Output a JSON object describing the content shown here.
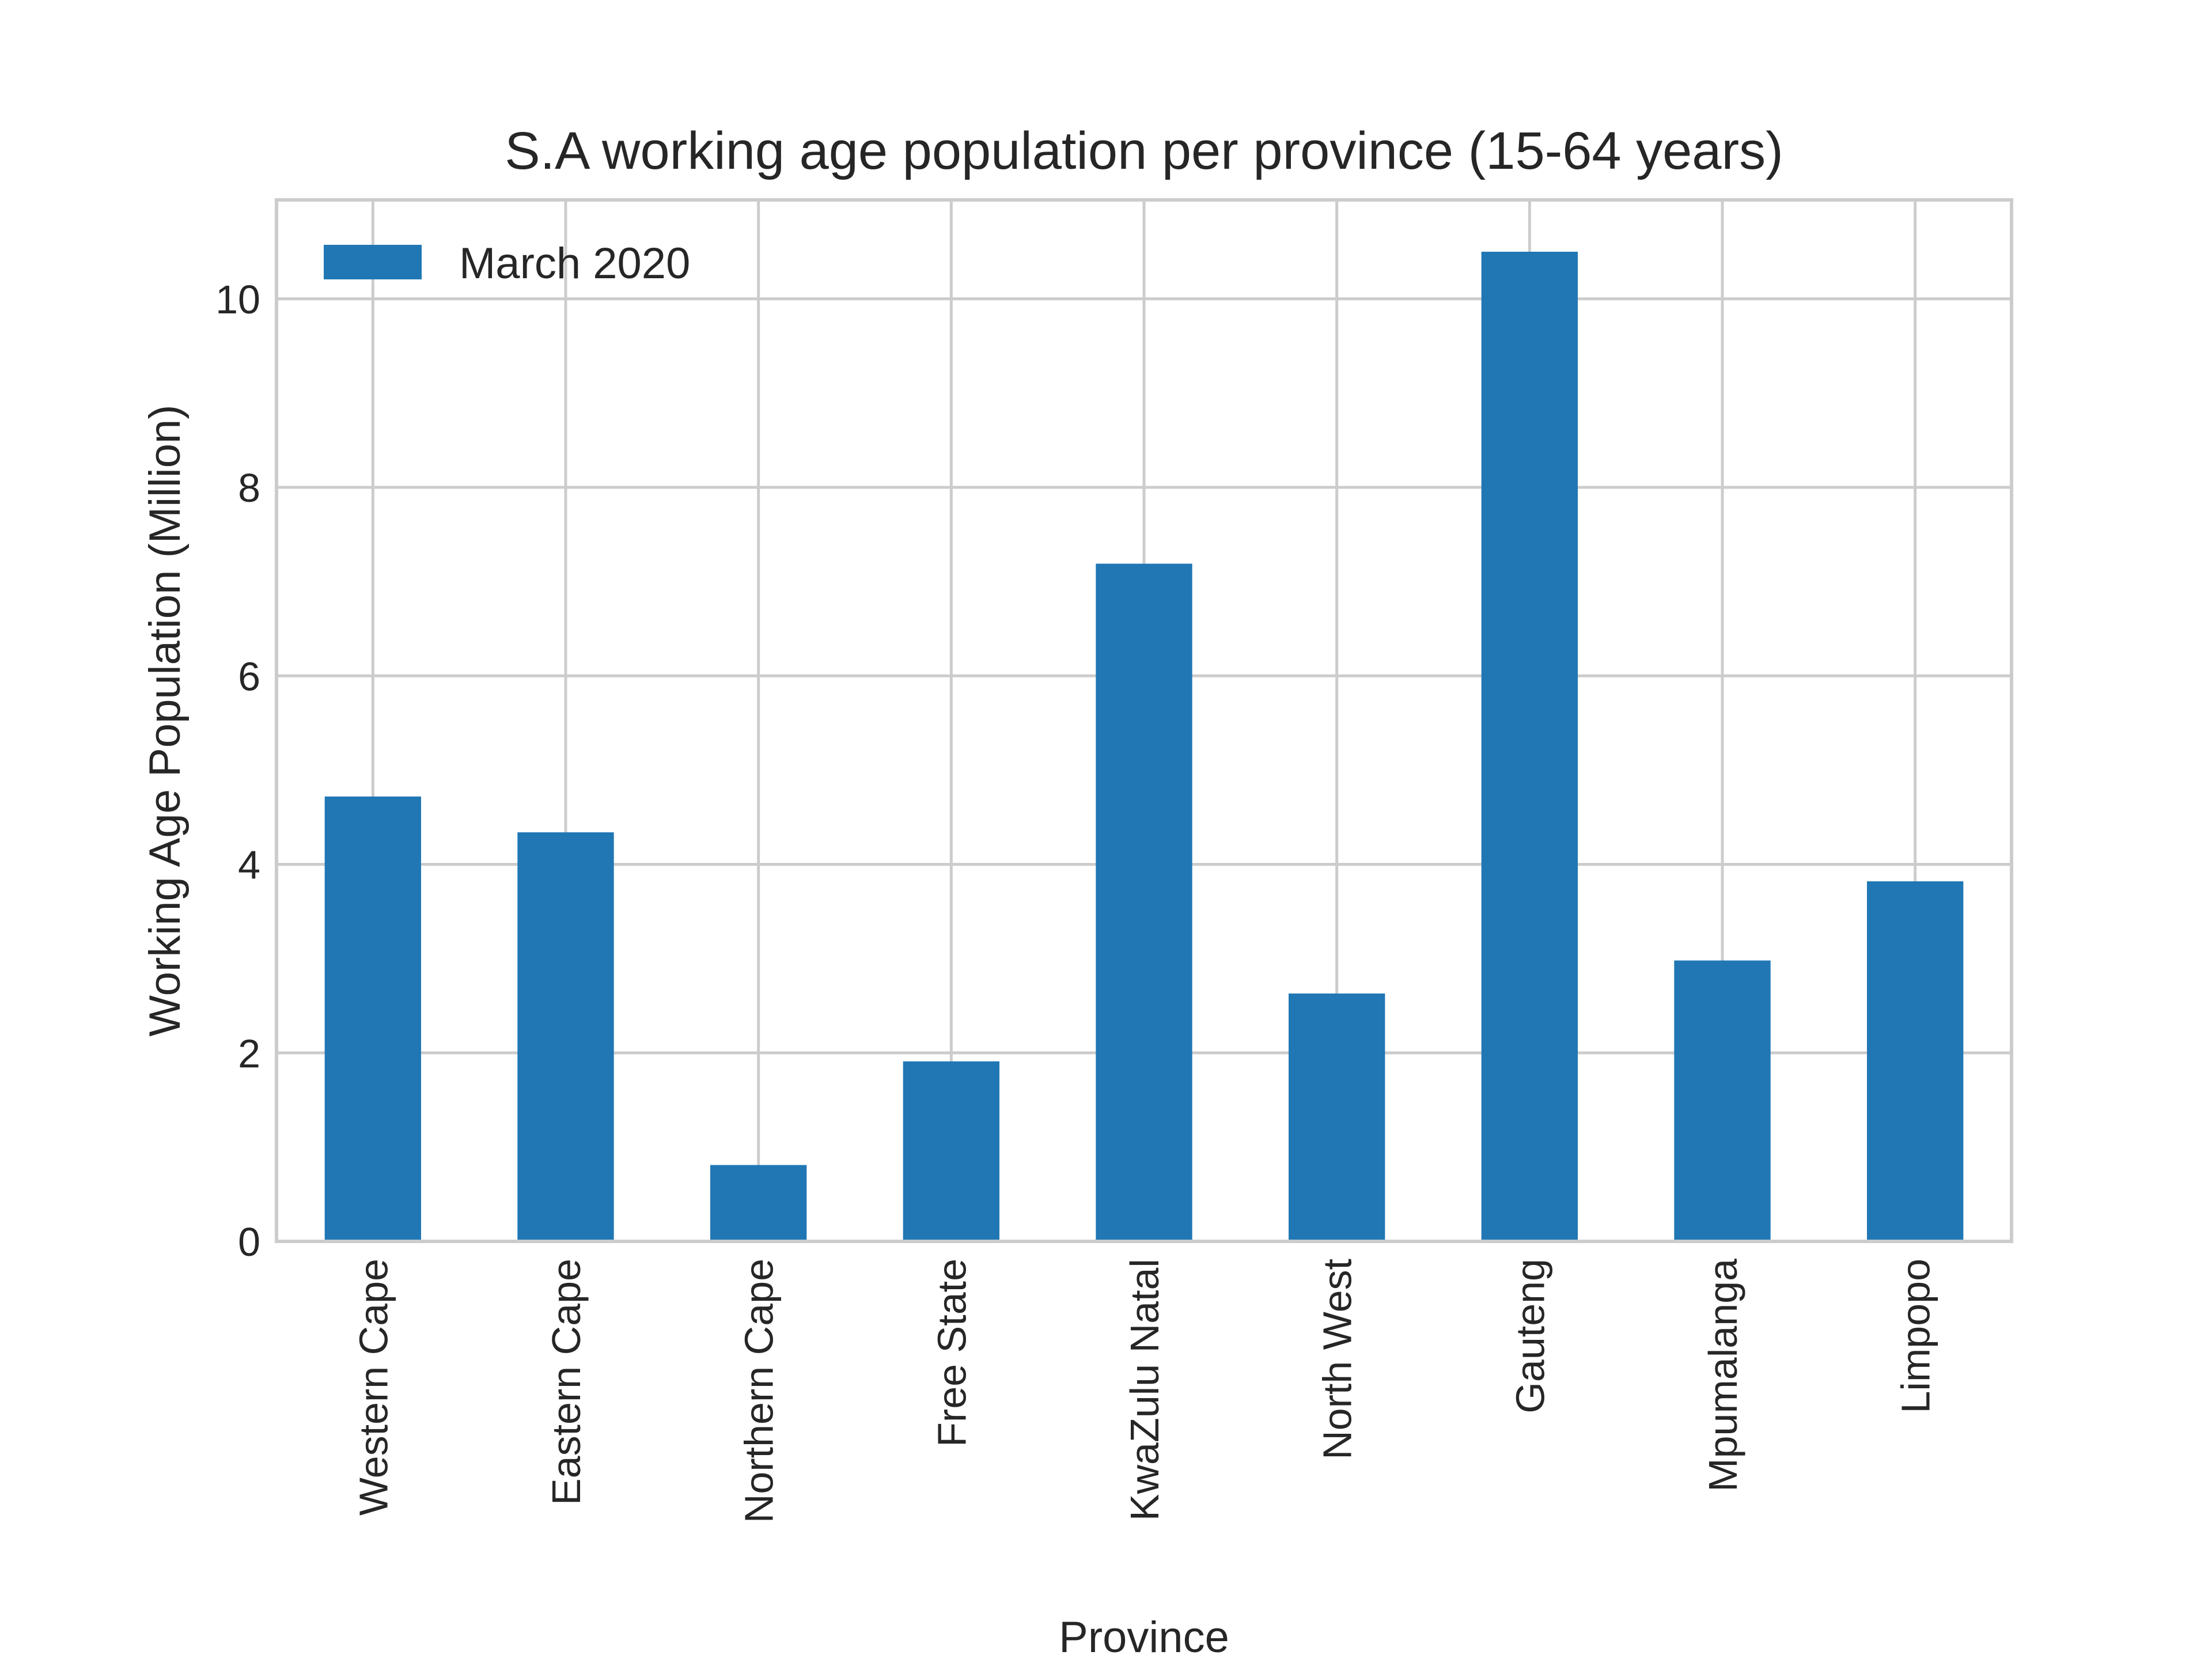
{
  "chart_data": {
    "type": "bar",
    "title": "S.A working age population per province (15-64 years)",
    "xlabel": "Province",
    "ylabel": "Working Age Population (Million)",
    "categories": [
      "Western Cape",
      "Eastern Cape",
      "Northern Cape",
      "Free State",
      "KwaZulu Natal",
      "North West",
      "Gauteng",
      "Mpumalanga",
      "Limpopo"
    ],
    "series": [
      {
        "name": "March 2020",
        "color": "#2077b4",
        "values": [
          4.72,
          4.34,
          0.81,
          1.91,
          7.19,
          2.63,
          10.5,
          2.98,
          3.82
        ]
      }
    ],
    "ylim": [
      0,
      11.05
    ],
    "yticks": [
      0,
      2,
      4,
      6,
      8,
      10
    ],
    "grid": true,
    "legend": "top-left"
  }
}
